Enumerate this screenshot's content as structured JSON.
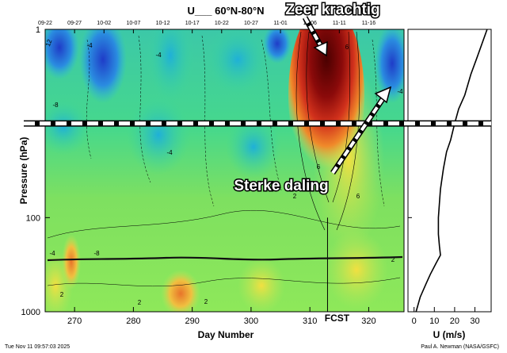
{
  "chart_data": {
    "type": "heatmap",
    "title": "U___ 60°N-80°N",
    "xlabel": "Day Number",
    "ylabel": "Pressure (hPa)",
    "x_ticks": [
      "270",
      "280",
      "290",
      "300",
      "310",
      "320"
    ],
    "x_tick_values": [
      270,
      280,
      290,
      300,
      310,
      320
    ],
    "xlim": [
      265,
      326
    ],
    "top_date_ticks": [
      "09-22",
      "09-27",
      "10-02",
      "10-07",
      "10-12",
      "10-17",
      "10-22",
      "10-27",
      "11-01",
      "11-06",
      "11-11",
      "11-16"
    ],
    "top_date_day_values": [
      265,
      270,
      275,
      280,
      285,
      290,
      295,
      300,
      305,
      310,
      315,
      320
    ],
    "y_ticks": [
      "1",
      "10",
      "100",
      "1000"
    ],
    "y_tick_values": [
      1,
      10,
      100,
      1000
    ],
    "ylim": [
      1,
      1000
    ],
    "y_scale": "log",
    "forecast_label": "FCST",
    "forecast_day": 313,
    "reference_level_hpa": 10,
    "contour_labels": [
      "12",
      "-4",
      "-8",
      "-4",
      "-4",
      "6",
      "6",
      "-4",
      "-8",
      "2",
      "2",
      "2",
      "2",
      "6",
      "2",
      "-4"
    ],
    "profile": {
      "xlabel": "U (m/s)",
      "x_ticks": [
        "0",
        "10",
        "20",
        "30"
      ],
      "x_tick_values": [
        0,
        10,
        20,
        30
      ],
      "xlim": [
        -3,
        38
      ],
      "pressure": [
        1,
        2,
        3,
        5,
        7,
        10,
        15,
        20,
        30,
        50,
        70,
        100,
        150,
        200,
        250,
        300,
        400,
        500,
        700,
        1000
      ],
      "u": [
        36,
        31,
        28,
        25,
        22,
        20,
        18,
        16,
        14.5,
        13,
        12.5,
        12,
        12,
        12.5,
        13,
        11,
        8,
        6,
        3,
        1
      ]
    }
  },
  "annotations": {
    "strong": "Zeer krachtig",
    "descent": "Sterke daling"
  },
  "footer": {
    "timestamp": "Tue Nov 11 09:57:03 2025",
    "credit": "Paul A. Newman (NASA/GSFC)"
  },
  "colors": {
    "strong_positive": "#4a0000",
    "positive": "#e0301a",
    "neutral": "#a8e85a",
    "weak": "#3cd89a",
    "negative": "#1f3cc8",
    "reference_line": "#000000"
  }
}
